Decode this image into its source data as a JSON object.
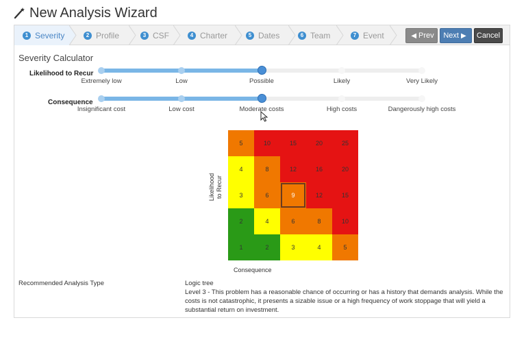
{
  "header": {
    "title": "New Analysis Wizard",
    "icon": "magic-wand-icon"
  },
  "steps": [
    {
      "num": "1",
      "label": "Severity",
      "active": true
    },
    {
      "num": "2",
      "label": "Profile",
      "active": false
    },
    {
      "num": "3",
      "label": "CSF",
      "active": false
    },
    {
      "num": "4",
      "label": "Charter",
      "active": false
    },
    {
      "num": "5",
      "label": "Dates",
      "active": false
    },
    {
      "num": "6",
      "label": "Team",
      "active": false
    },
    {
      "num": "7",
      "label": "Event",
      "active": false
    }
  ],
  "buttons": {
    "prev": "Prev",
    "next": "Next",
    "cancel": "Cancel"
  },
  "calculator": {
    "title": "Severity Calculator",
    "likelihood": {
      "label": "Likelihood to Recur",
      "options": [
        "Extremely low",
        "Low",
        "Possible",
        "Likely",
        "Very Likely"
      ],
      "selected_index": 2
    },
    "consequence": {
      "label": "Consequence",
      "options": [
        "Insignificant cost",
        "Low cost",
        "Moderate costs",
        "High costs",
        "Dangerously high costs"
      ],
      "selected_index": 2
    }
  },
  "matrix": {
    "y_label_line1": "Likelihood",
    "y_label_line2": "to Recur",
    "x_label": "Consequence",
    "rows": [
      [
        5,
        10,
        15,
        20,
        25
      ],
      [
        4,
        8,
        12,
        16,
        20
      ],
      [
        3,
        6,
        9,
        12,
        15
      ],
      [
        2,
        4,
        6,
        8,
        10
      ],
      [
        1,
        2,
        3,
        4,
        5
      ]
    ],
    "colors": {
      "green": "#2a9a17",
      "yellow": "#ffff00",
      "orange": "#f07800",
      "red": "#e51313"
    },
    "selected": {
      "row": 2,
      "col": 2
    }
  },
  "recommendation": {
    "label": "Recommended Analysis Type",
    "type": "Logic tree",
    "description": "Level 3 - This problem has a reasonable chance of occurring or has a history that demands analysis. While the costs is not catastrophic, it presents a sizable issue or a high frequency of work stoppage that will yield a substantial return on investment."
  }
}
